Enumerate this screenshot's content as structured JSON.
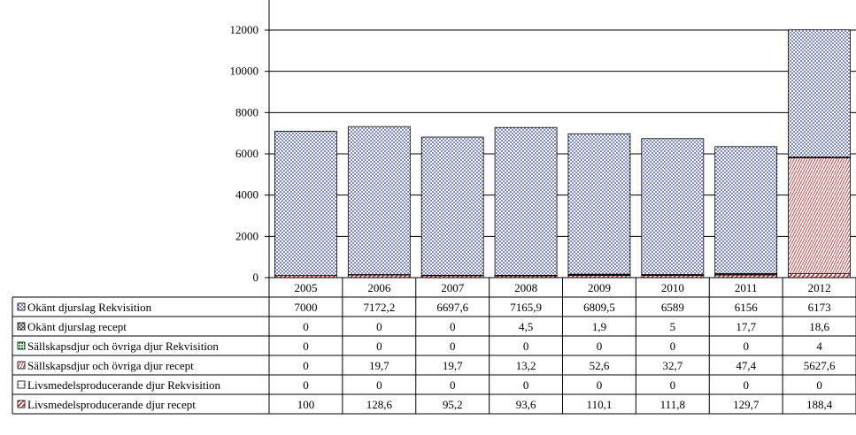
{
  "chart_data": {
    "type": "bar",
    "stacked": true,
    "categories": [
      "2005",
      "2006",
      "2007",
      "2008",
      "2009",
      "2010",
      "2011",
      "2012"
    ],
    "ylim": [
      0,
      12000
    ],
    "yticks": [
      "0",
      "2000",
      "4000",
      "6000",
      "8000",
      "10000",
      "12000"
    ],
    "grid": true,
    "legend": "data-table-left",
    "series": [
      {
        "name": "Okänt djurslag Rekvisition",
        "values": [
          7000,
          7172.2,
          6697.6,
          7165.9,
          6809.5,
          6589,
          6156,
          6173
        ],
        "labels": [
          "7000",
          "7172,2",
          "6697,6",
          "7165,9",
          "6809,5",
          "6589",
          "6156",
          "6173"
        ],
        "color": "#2b2bb0",
        "pattern": "dots"
      },
      {
        "name": "Okänt djurslag recept",
        "values": [
          0,
          0,
          0,
          4.5,
          1.9,
          5,
          17.7,
          18.6
        ],
        "labels": [
          "0",
          "0",
          "0",
          "4,5",
          "1,9",
          "5",
          "17,7",
          "18,6"
        ],
        "color": "#333333",
        "pattern": "cross"
      },
      {
        "name": "Sällskapsdjur och övriga djur Rekvisition",
        "values": [
          0,
          0,
          0,
          0,
          0,
          0,
          0,
          4
        ],
        "labels": [
          "0",
          "0",
          "0",
          "0",
          "0",
          "0",
          "0",
          "4"
        ],
        "color": "#2ea02e",
        "pattern": "green"
      },
      {
        "name": "Sällskapsdjur och övriga djur recept",
        "values": [
          0,
          19.7,
          19.7,
          13.2,
          52.6,
          32.7,
          47.4,
          5627.6
        ],
        "labels": [
          "0",
          "19,7",
          "19,7",
          "13,2",
          "52,6",
          "32,7",
          "47,4",
          "5627,6"
        ],
        "color": "#d04040",
        "pattern": "redsmall"
      },
      {
        "name": "Livsmedelsproducerande djur Rekvisition",
        "values": [
          0,
          0,
          0,
          0,
          0,
          0,
          0,
          0
        ],
        "labels": [
          "0",
          "0",
          "0",
          "0",
          "0",
          "0",
          "0",
          "0"
        ],
        "color": "#c02020",
        "pattern": "empty"
      },
      {
        "name": "Livsmedelsproducerande djur recept",
        "values": [
          100,
          128.6,
          95.2,
          93.6,
          110.1,
          111.8,
          129.7,
          188.4
        ],
        "labels": [
          "100",
          "128,6",
          "95,2",
          "93,6",
          "110,1",
          "111,8",
          "129,7",
          "188,4"
        ],
        "color": "#d02020",
        "pattern": "diag"
      }
    ],
    "stack_order": [
      5,
      4,
      3,
      2,
      1,
      0
    ]
  }
}
